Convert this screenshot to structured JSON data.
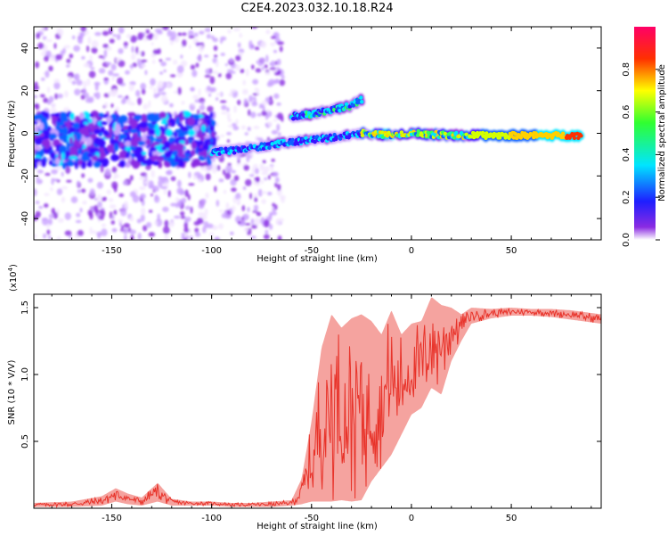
{
  "title": "C2E4.2023.032.10.18.R24",
  "colors": {
    "snr_line": "#e8332a",
    "spectrogram_low": "#7000ff",
    "axis": "#000000"
  },
  "chart_data": [
    {
      "type": "heatmap",
      "name": "spectrogram",
      "xlabel": "Height of straight line (km)",
      "ylabel": "Frequency (Hz)",
      "xlim": [
        -189,
        95
      ],
      "ylim": [
        -50,
        50
      ],
      "x_ticks": [
        -150,
        -100,
        -50,
        0,
        50
      ],
      "x_tick_labels": [
        "-150",
        "-100",
        "-50",
        "0",
        "50"
      ],
      "y_ticks": [
        -40,
        -20,
        0,
        20,
        40
      ],
      "y_tick_labels": [
        "-40",
        "-20",
        "0",
        "20",
        "40"
      ],
      "grid": false,
      "colormap": "rainbow (purple to red)",
      "features": [
        {
          "label": "main ridge",
          "x": [
            -100,
            -80,
            -60,
            -40,
            -25,
            -10,
            0,
            20,
            50,
            85
          ],
          "y": [
            -9,
            -7,
            -4,
            -2,
            0,
            -1,
            0,
            -1,
            -1,
            -1
          ]
        },
        {
          "label": "upper branch",
          "x": [
            -60,
            -50,
            -40,
            -30,
            -25
          ],
          "y": [
            8,
            9,
            11,
            13,
            16
          ]
        }
      ],
      "colorbar": {
        "label": "Normalized spectral amplitude",
        "range": [
          0.0,
          1.0
        ],
        "ticks": [
          0.0,
          0.2,
          0.4,
          0.6,
          0.8
        ],
        "tick_labels": [
          "0.0",
          "0.2",
          "0.4",
          "0.6",
          "0.8"
        ]
      }
    },
    {
      "type": "line",
      "name": "snr",
      "xlabel": "Height of straight line (km)",
      "ylabel": "SNR (10 * V/V)",
      "y_multiplier": "(x10",
      "y_multiplier_exp": "4",
      "y_multiplier_close": ")",
      "xlim": [
        -189,
        95
      ],
      "ylim": [
        0,
        1.6
      ],
      "x_ticks": [
        -150,
        -100,
        -50,
        0,
        50
      ],
      "x_tick_labels": [
        "-150",
        "-100",
        "-50",
        "0",
        "50"
      ],
      "y_ticks": [
        0.5,
        1.0,
        1.5
      ],
      "y_tick_labels": [
        "0.5",
        "1.0",
        "1.5"
      ],
      "grid": false,
      "series": [
        {
          "x": [
            -189,
            -170,
            -155,
            -148,
            -142,
            -135,
            -127,
            -120,
            -110,
            -100,
            -90,
            -80,
            -70,
            -60,
            -55,
            -50,
            -45,
            -40,
            -35,
            -30,
            -25,
            -20,
            -15,
            -10,
            -5,
            0,
            5,
            10,
            15,
            20,
            25,
            30,
            40,
            50,
            60,
            70,
            80,
            95
          ],
          "y": [
            0.03,
            0.03,
            0.05,
            0.11,
            0.08,
            0.06,
            0.13,
            0.05,
            0.04,
            0.04,
            0.03,
            0.03,
            0.03,
            0.04,
            0.1,
            0.3,
            0.55,
            0.7,
            0.75,
            0.8,
            0.75,
            0.7,
            0.8,
            0.95,
            0.98,
            1.05,
            1.15,
            1.22,
            1.3,
            1.35,
            1.38,
            1.45,
            1.46,
            1.47,
            1.47,
            1.46,
            1.45,
            1.42
          ],
          "envelope_max": [
            0.04,
            0.05,
            0.09,
            0.15,
            0.11,
            0.08,
            0.19,
            0.07,
            0.05,
            0.05,
            0.04,
            0.04,
            0.05,
            0.06,
            0.22,
            0.65,
            1.2,
            1.45,
            1.35,
            1.42,
            1.45,
            1.4,
            1.3,
            1.48,
            1.3,
            1.38,
            1.4,
            1.58,
            1.52,
            1.5,
            1.45,
            1.5,
            1.49,
            1.5,
            1.49,
            1.49,
            1.48,
            1.45
          ],
          "envelope_min": [
            0.01,
            0.01,
            0.02,
            0.05,
            0.03,
            0.02,
            0.05,
            0.02,
            0.02,
            0.02,
            0.01,
            0.01,
            0.01,
            0.02,
            0.03,
            0.05,
            0.05,
            0.05,
            0.06,
            0.05,
            0.06,
            0.2,
            0.3,
            0.4,
            0.55,
            0.7,
            0.75,
            0.9,
            0.85,
            1.1,
            1.25,
            1.38,
            1.42,
            1.44,
            1.44,
            1.43,
            1.41,
            1.38
          ]
        }
      ]
    }
  ]
}
